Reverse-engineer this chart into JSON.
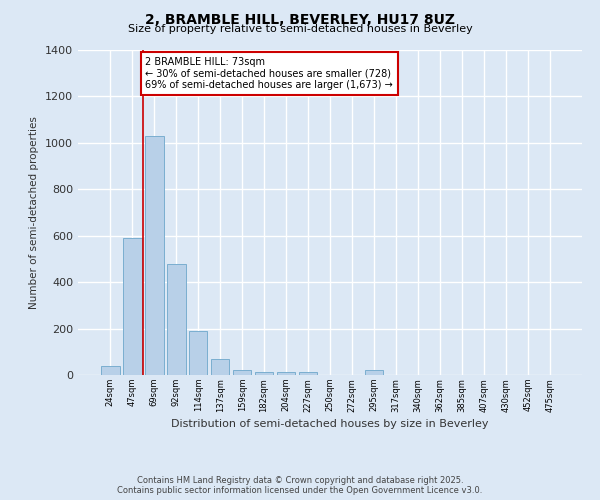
{
  "title": "2, BRAMBLE HILL, BEVERLEY, HU17 8UZ",
  "subtitle": "Size of property relative to semi-detached houses in Beverley",
  "xlabel": "Distribution of semi-detached houses by size in Beverley",
  "ylabel": "Number of semi-detached properties",
  "categories": [
    "24sqm",
    "47sqm",
    "69sqm",
    "92sqm",
    "114sqm",
    "137sqm",
    "159sqm",
    "182sqm",
    "204sqm",
    "227sqm",
    "250sqm",
    "272sqm",
    "295sqm",
    "317sqm",
    "340sqm",
    "362sqm",
    "385sqm",
    "407sqm",
    "430sqm",
    "452sqm",
    "475sqm"
  ],
  "values": [
    38,
    590,
    1030,
    480,
    190,
    70,
    22,
    15,
    15,
    12,
    0,
    0,
    20,
    0,
    0,
    0,
    0,
    0,
    0,
    0,
    0
  ],
  "bar_color": "#b8d0e8",
  "bar_edge_color": "#7aaed0",
  "highlight_bar_index": 2,
  "highlight_line_color": "#cc0000",
  "annotation_text": "2 BRAMBLE HILL: 73sqm\n← 30% of semi-detached houses are smaller (728)\n69% of semi-detached houses are larger (1,673) →",
  "annotation_box_facecolor": "#ffffff",
  "annotation_box_edgecolor": "#cc0000",
  "background_color": "#dce8f5",
  "grid_color": "#ffffff",
  "ylim": [
    0,
    1400
  ],
  "yticks": [
    0,
    200,
    400,
    600,
    800,
    1000,
    1200,
    1400
  ],
  "footer_line1": "Contains HM Land Registry data © Crown copyright and database right 2025.",
  "footer_line2": "Contains public sector information licensed under the Open Government Licence v3.0."
}
